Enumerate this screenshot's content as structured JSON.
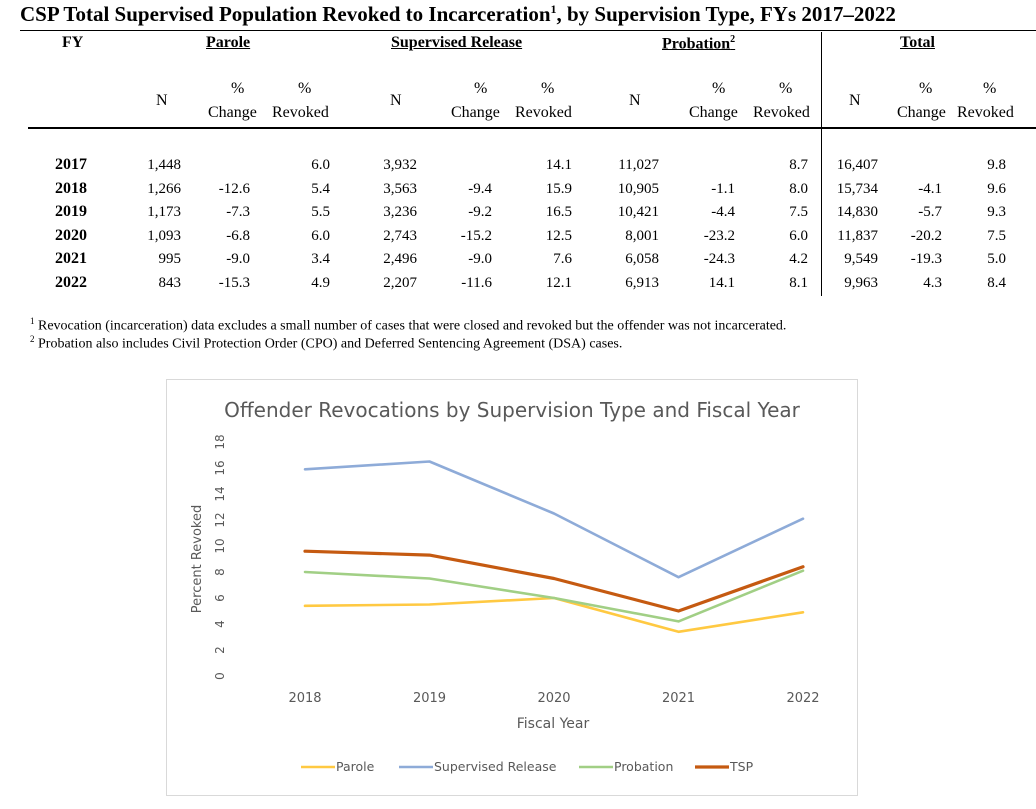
{
  "title": {
    "text": "CSP Total Supervised Population Revoked to Incarceration",
    "sup": "1",
    "suffix": ", by Supervision Type, FYs 2017–2022"
  },
  "table": {
    "fy_label": "FY",
    "groups": [
      {
        "label": "Parole",
        "sup": ""
      },
      {
        "label": "Supervised Release",
        "sup": ""
      },
      {
        "label": "Probation",
        "sup": "2"
      },
      {
        "label": "Total",
        "sup": ""
      }
    ],
    "col_n": "N",
    "col_pct": "%",
    "col_change": "Change",
    "col_revoked": "Revoked",
    "rows": [
      {
        "fy": "2017",
        "cells": [
          "1,448",
          "",
          "6.0",
          "3,932",
          "",
          "14.1",
          "11,027",
          "",
          "8.7",
          "16,407",
          "",
          "9.8"
        ]
      },
      {
        "fy": "2018",
        "cells": [
          "1,266",
          "-12.6",
          "5.4",
          "3,563",
          "-9.4",
          "15.9",
          "10,905",
          "-1.1",
          "8.0",
          "15,734",
          "-4.1",
          "9.6"
        ]
      },
      {
        "fy": "2019",
        "cells": [
          "1,173",
          "-7.3",
          "5.5",
          "3,236",
          "-9.2",
          "16.5",
          "10,421",
          "-4.4",
          "7.5",
          "14,830",
          "-5.7",
          "9.3"
        ]
      },
      {
        "fy": "2020",
        "cells": [
          "1,093",
          "-6.8",
          "6.0",
          "2,743",
          "-15.2",
          "12.5",
          "8,001",
          "-23.2",
          "6.0",
          "11,837",
          "-20.2",
          "7.5"
        ]
      },
      {
        "fy": "2021",
        "cells": [
          "995",
          "-9.0",
          "3.4",
          "2,496",
          "-9.0",
          "7.6",
          "6,058",
          "-24.3",
          "4.2",
          "9,549",
          "-19.3",
          "5.0"
        ]
      },
      {
        "fy": "2022",
        "cells": [
          "843",
          "-15.3",
          "4.9",
          "2,207",
          "-11.6",
          "12.1",
          "6,913",
          "14.1",
          "8.1",
          "9,963",
          "4.3",
          "8.4"
        ]
      }
    ]
  },
  "footnotes": [
    {
      "sup": "1",
      "text": "Revocation (incarceration) data excludes a small number of cases that were closed and revoked but the offender was not incarcerated."
    },
    {
      "sup": "2",
      "text": "Probation also includes Civil Protection Order (CPO) and Deferred Sentencing Agreement (DSA) cases."
    }
  ],
  "chart_data": {
    "type": "line",
    "title": "Offender Revocations by Supervision Type and Fiscal Year",
    "xlabel": "Fiscal Year",
    "ylabel": "Percent Revoked",
    "x": [
      "2018",
      "2019",
      "2020",
      "2021",
      "2022"
    ],
    "ylim": [
      0,
      18
    ],
    "yticks": [
      0,
      2,
      4,
      6,
      8,
      10,
      12,
      14,
      16,
      18
    ],
    "grid": false,
    "legend_position": "bottom",
    "series": [
      {
        "name": "Parole",
        "color": "#ffc942",
        "values": [
          5.4,
          5.5,
          6.0,
          3.4,
          4.9
        ]
      },
      {
        "name": "Supervised Release",
        "color": "#8eabd8",
        "values": [
          15.9,
          16.5,
          12.5,
          7.6,
          12.1
        ]
      },
      {
        "name": "Probation",
        "color": "#a1cf85",
        "values": [
          8.0,
          7.5,
          6.0,
          4.2,
          8.1
        ]
      },
      {
        "name": "TSP",
        "color": "#c55a11",
        "values": [
          9.6,
          9.3,
          7.5,
          5.0,
          8.4
        ]
      }
    ]
  }
}
